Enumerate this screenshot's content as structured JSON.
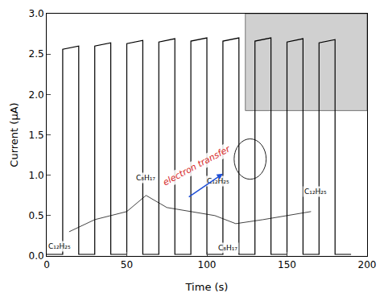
{
  "chart_data": {
    "type": "line",
    "x_label": "Time (s)",
    "y_label": "Current (μA)",
    "color": "#000000",
    "grid": false,
    "xlim": [
      0,
      200
    ],
    "xticks": [
      0,
      50,
      100,
      150,
      200
    ],
    "ylim": [
      0,
      3.0
    ],
    "yticks": [
      {
        "value": 0,
        "label": "0.0"
      },
      {
        "value": 0.5,
        "label": "0.5"
      },
      {
        "value": 1.0,
        "label": "1.0"
      },
      {
        "value": 1.5,
        "label": "1.5"
      },
      {
        "value": 2.0,
        "label": "2.0"
      },
      {
        "value": 2.5,
        "label": "2.5"
      },
      {
        "value": 3.0,
        "label": "3.0"
      }
    ],
    "x": [
      0,
      10,
      10,
      20,
      20,
      30,
      30,
      40,
      40,
      50,
      50,
      60,
      60,
      70,
      70,
      80,
      80,
      90,
      90,
      100,
      100,
      110,
      110,
      120,
      120,
      130,
      130,
      140,
      140,
      150,
      150,
      160,
      160,
      170,
      170,
      180,
      180,
      190
    ],
    "values": [
      0.02,
      0.02,
      2.56,
      2.6,
      0.02,
      0.02,
      2.6,
      2.64,
      0.02,
      0.02,
      2.63,
      2.67,
      0.02,
      0.02,
      2.65,
      2.69,
      0.02,
      0.02,
      2.66,
      2.7,
      0.02,
      0.02,
      2.66,
      2.7,
      0.02,
      0.02,
      2.66,
      2.7,
      0.02,
      0.02,
      2.65,
      2.69,
      0.02,
      0.02,
      2.64,
      2.68,
      0.02,
      0.02
    ],
    "annotations": [
      "electron transfer",
      "C₈H₁₇",
      "C₈H₁₇",
      "C₁₂H₂₅",
      "C₁₂H₂₅",
      "C₁₂H₂₅"
    ]
  }
}
